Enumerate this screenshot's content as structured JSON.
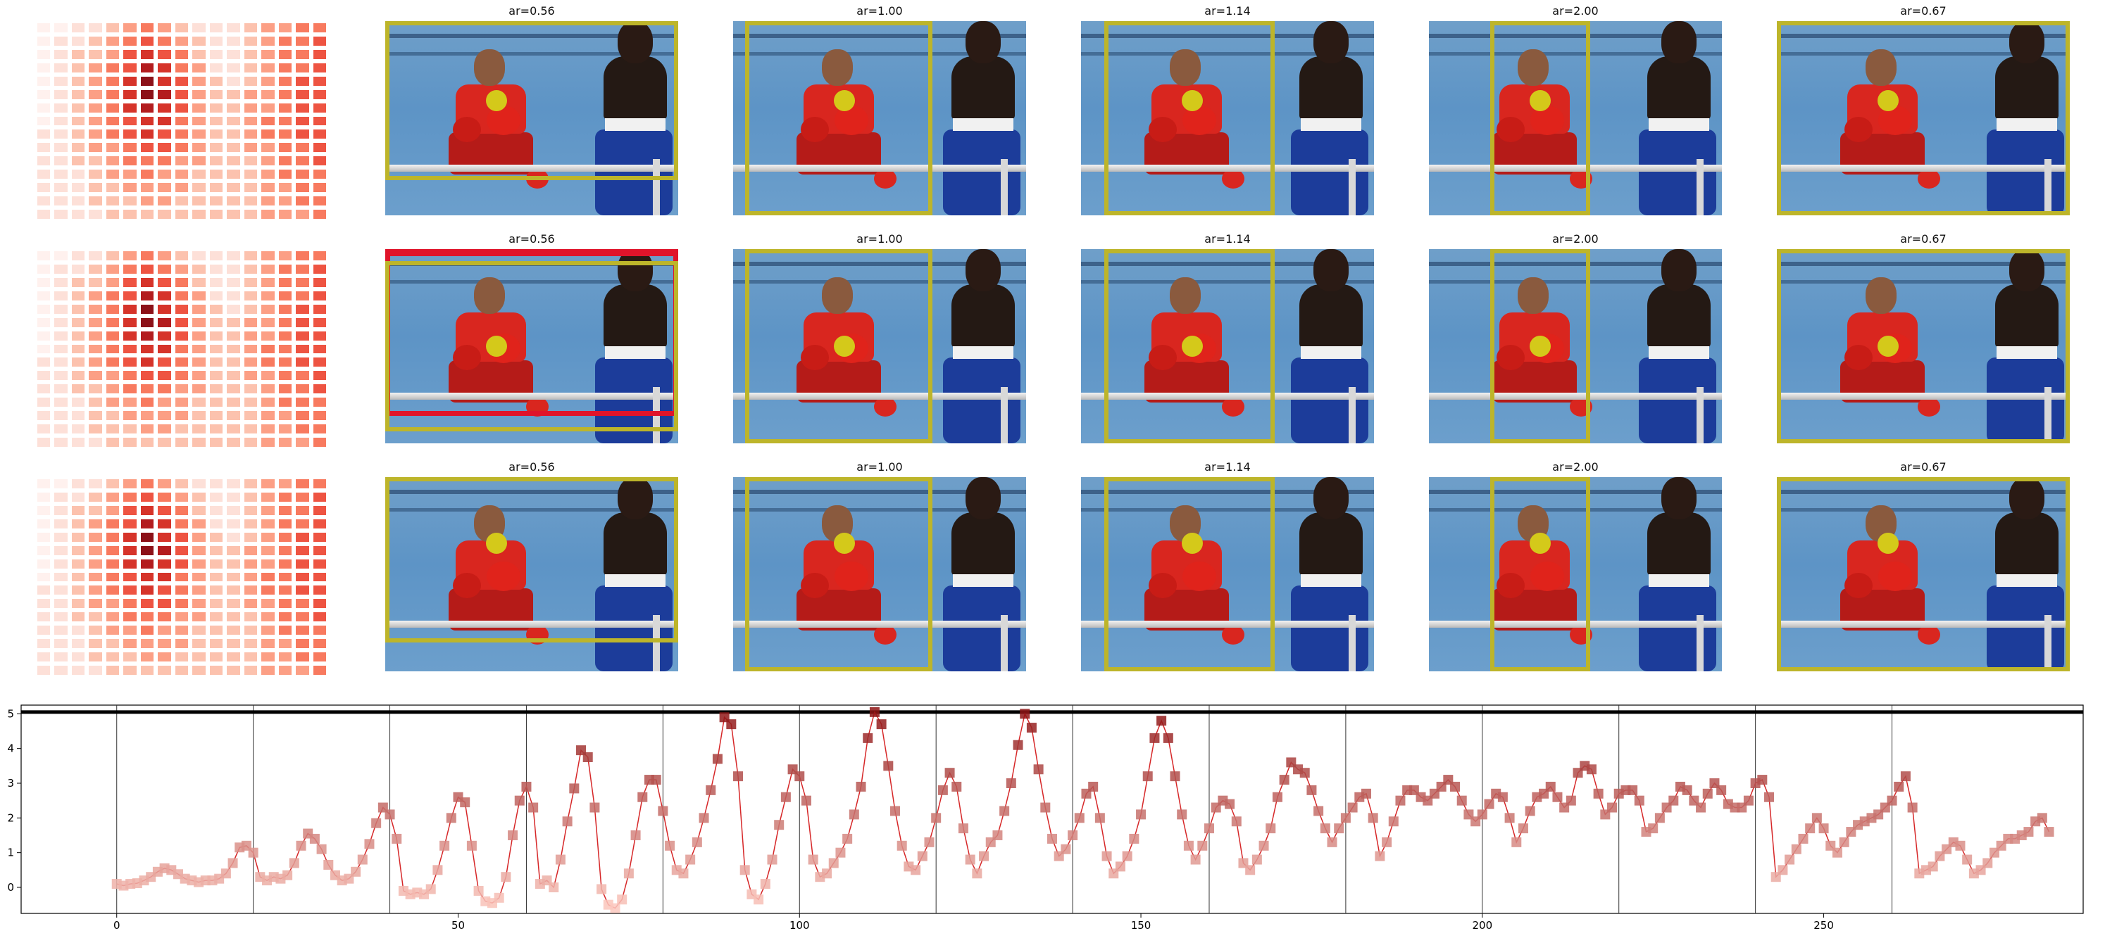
{
  "figure": {
    "rows": [
      {
        "panels": [
          {
            "title": "ar=0.56",
            "box": [
              0.0,
              0.0,
              1.0,
              0.82
            ],
            "dot": [
              0.38,
              0.41
            ]
          },
          {
            "title": "ar=1.00",
            "box": [
              0.04,
              0.0,
              0.68,
              1.0
            ],
            "dot": [
              0.38,
              0.41
            ]
          },
          {
            "title": "ar=1.14",
            "box": [
              0.08,
              0.0,
              0.66,
              1.0
            ],
            "dot": [
              0.38,
              0.41
            ]
          },
          {
            "title": "ar=2.00",
            "box": [
              0.21,
              0.0,
              0.55,
              1.0
            ],
            "dot": [
              0.38,
              0.41
            ]
          },
          {
            "title": "ar=0.67",
            "box": [
              0.0,
              0.0,
              1.0,
              1.0
            ],
            "dot": [
              0.38,
              0.41
            ]
          }
        ]
      },
      {
        "panels": [
          {
            "title": "ar=0.56",
            "box": [
              0.0,
              0.06,
              1.0,
              0.94
            ],
            "red_box": [
              0.0,
              0.0,
              1.0,
              0.86
            ],
            "dot": [
              0.38,
              0.5
            ]
          },
          {
            "title": "ar=1.00",
            "box": [
              0.04,
              0.0,
              0.68,
              1.0
            ],
            "dot": [
              0.38,
              0.5
            ]
          },
          {
            "title": "ar=1.14",
            "box": [
              0.08,
              0.0,
              0.66,
              1.0
            ],
            "dot": [
              0.38,
              0.5
            ]
          },
          {
            "title": "ar=2.00",
            "box": [
              0.21,
              0.0,
              0.55,
              1.0
            ],
            "dot": [
              0.38,
              0.5
            ]
          },
          {
            "title": "ar=0.67",
            "box": [
              0.0,
              0.0,
              1.0,
              1.0
            ],
            "dot": [
              0.38,
              0.5
            ]
          }
        ]
      },
      {
        "panels": [
          {
            "title": "ar=0.56",
            "box": [
              0.0,
              0.0,
              1.0,
              0.85
            ],
            "dot": [
              0.38,
              0.34
            ]
          },
          {
            "title": "ar=1.00",
            "box": [
              0.04,
              0.0,
              0.68,
              1.0
            ],
            "dot": [
              0.38,
              0.34
            ]
          },
          {
            "title": "ar=1.14",
            "box": [
              0.08,
              0.0,
              0.66,
              1.0
            ],
            "dot": [
              0.38,
              0.34
            ]
          },
          {
            "title": "ar=2.00",
            "box": [
              0.21,
              0.0,
              0.55,
              1.0
            ],
            "dot": [
              0.38,
              0.34
            ]
          },
          {
            "title": "ar=0.67",
            "box": [
              0.0,
              0.0,
              1.0,
              1.0
            ],
            "dot": [
              0.38,
              0.34
            ]
          }
        ]
      }
    ]
  },
  "chart_data": {
    "type": "line",
    "xlim": [
      -14,
      288
    ],
    "ylim": [
      -0.75,
      5.25
    ],
    "xticks": [
      0,
      50,
      100,
      150,
      200,
      250
    ],
    "yticks": [
      0,
      1,
      2,
      3,
      4,
      5
    ],
    "segment_boundaries": [
      0,
      20,
      40,
      60,
      80,
      100,
      120,
      140,
      160,
      180,
      200,
      220,
      240,
      260
    ],
    "max_line_y": 5.05,
    "line_color": "#d62728",
    "marker_colormap": "Reds",
    "series": [
      {
        "values": [
          0.1,
          0.05,
          0.1,
          0.12,
          0.2,
          0.3,
          0.45,
          0.55,
          0.5,
          0.38,
          0.25,
          0.2,
          0.15,
          0.2,
          0.2,
          0.25,
          0.4,
          0.7,
          1.15,
          1.2,
          1.0,
          0.3,
          0.2,
          0.3,
          0.25,
          0.35,
          0.7,
          1.2,
          1.55,
          1.4,
          1.1,
          0.65,
          0.35,
          0.2,
          0.25,
          0.45,
          0.8,
          1.25,
          1.85,
          2.3,
          2.1,
          1.4,
          -0.1,
          -0.2,
          -0.15,
          -0.2,
          -0.05,
          0.5,
          1.2,
          2.0,
          2.6,
          2.45,
          1.2,
          -0.1,
          -0.4,
          -0.45,
          -0.3,
          0.3,
          1.5,
          2.5,
          2.9,
          2.3,
          0.1,
          0.2,
          0.0,
          0.8,
          1.9,
          2.85,
          3.95,
          3.75,
          2.3,
          -0.05,
          -0.5,
          -0.6,
          -0.35,
          0.4,
          1.5,
          2.6,
          3.1,
          3.1,
          2.2,
          1.2,
          0.5,
          0.4,
          0.8,
          1.3,
          2.0,
          2.8,
          3.7,
          4.9,
          4.7,
          3.2,
          0.5,
          -0.2,
          -0.35,
          0.1,
          0.8,
          1.8,
          2.6,
          3.4,
          3.2,
          2.5,
          0.8,
          0.3,
          0.4,
          0.7,
          1.0,
          1.4,
          2.1,
          2.9,
          4.3,
          5.05,
          4.7,
          3.5,
          2.2,
          1.2,
          0.6,
          0.5,
          0.9,
          1.3,
          2.0,
          2.8,
          3.3,
          2.9,
          1.7,
          0.8,
          0.4,
          0.9,
          1.3,
          1.5,
          2.2,
          3.0,
          4.1,
          5.0,
          4.6,
          3.4,
          2.3,
          1.4,
          0.9,
          1.1,
          1.5,
          2.0,
          2.7,
          2.9,
          2.0,
          0.9,
          0.4,
          0.6,
          0.9,
          1.4,
          2.1,
          3.2,
          4.3,
          4.8,
          4.3,
          3.2,
          2.1,
          1.2,
          0.8,
          1.2,
          1.7,
          2.3,
          2.5,
          2.4,
          1.9,
          0.7,
          0.5,
          0.8,
          1.2,
          1.7,
          2.6,
          3.1,
          3.6,
          3.4,
          3.3,
          2.8,
          2.2,
          1.7,
          1.3,
          1.7,
          2.0,
          2.3,
          2.6,
          2.7,
          2.0,
          0.9,
          1.3,
          1.9,
          2.5,
          2.8,
          2.8,
          2.6,
          2.5,
          2.7,
          2.9,
          3.1,
          2.9,
          2.5,
          2.1,
          1.9,
          2.1,
          2.4,
          2.7,
          2.6,
          2.0,
          1.3,
          1.7,
          2.2,
          2.6,
          2.7,
          2.9,
          2.6,
          2.3,
          2.5,
          3.3,
          3.5,
          3.4,
          2.7,
          2.1,
          2.3,
          2.7,
          2.8,
          2.8,
          2.5,
          1.6,
          1.7,
          2.0,
          2.3,
          2.5,
          2.9,
          2.8,
          2.5,
          2.3,
          2.7,
          3.0,
          2.8,
          2.4,
          2.3,
          2.3,
          2.5,
          3.0,
          3.1,
          2.6,
          0.3,
          0.5,
          0.8,
          1.1,
          1.4,
          1.7,
          2.0,
          1.7,
          1.2,
          1.0,
          1.3,
          1.6,
          1.8,
          1.9,
          2.0,
          2.1,
          2.3,
          2.5,
          2.9,
          3.2,
          2.3,
          0.4,
          0.5,
          0.6,
          0.9,
          1.1,
          1.3,
          1.2,
          0.8,
          0.4,
          0.5,
          0.7,
          1.0,
          1.2,
          1.4,
          1.4,
          1.5,
          1.6,
          1.9,
          2.0,
          1.6
        ]
      }
    ]
  }
}
